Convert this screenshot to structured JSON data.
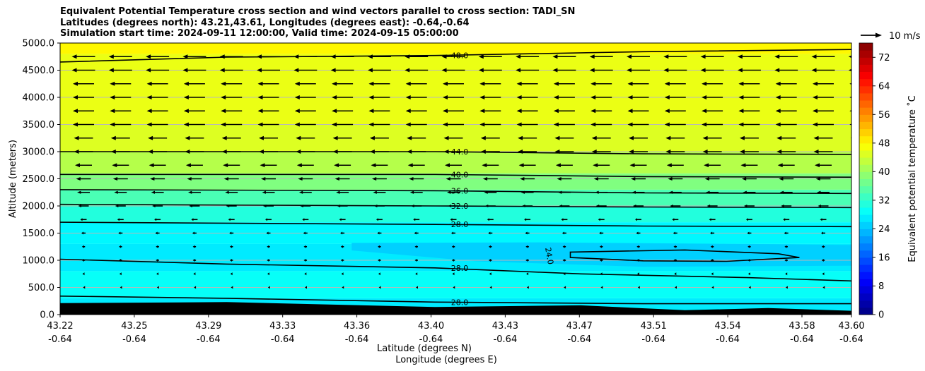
{
  "title": {
    "line1": "Equivalent Potential Temperature cross section and wind vectors parallel to cross section: TADI_SN",
    "line2": "Latitudes (degrees north): 43.21,43.61, Longitudes (degrees east): -0.64,-0.64",
    "line3": "Simulation start time: 2024-09-11 12:00:00, Valid time: 2024-09-15 05:00:00"
  },
  "chart_data": {
    "type": "heatmap",
    "description_of_overlay": "filled contours with labeled contour lines and wind vector arrows",
    "xlabel_line1": "Latitude (degrees N)",
    "xlabel_line2": "Longitude (degrees E)",
    "ylabel": "Altitude (meters)",
    "ylim": [
      0,
      5000
    ],
    "xlim": [
      43.22,
      43.6
    ],
    "x_ticks": [
      {
        "lat": "43.22",
        "lon": "-0.64"
      },
      {
        "lat": "43.25",
        "lon": "-0.64"
      },
      {
        "lat": "43.29",
        "lon": "-0.64"
      },
      {
        "lat": "43.33",
        "lon": "-0.64"
      },
      {
        "lat": "43.36",
        "lon": "-0.64"
      },
      {
        "lat": "43.40",
        "lon": "-0.64"
      },
      {
        "lat": "43.43",
        "lon": "-0.64"
      },
      {
        "lat": "43.47",
        "lon": "-0.64"
      },
      {
        "lat": "43.51",
        "lon": "-0.64"
      },
      {
        "lat": "43.54",
        "lon": "-0.64"
      },
      {
        "lat": "43.58",
        "lon": "-0.64"
      },
      {
        "lat": "43.60",
        "lon": "-0.64"
      }
    ],
    "y_ticks": [
      "0.0",
      "500.0",
      "1000.0",
      "1500.0",
      "2000.0",
      "2500.0",
      "3000.0",
      "3500.0",
      "4000.0",
      "4500.0",
      "5000.0"
    ],
    "y_tick_values": [
      0,
      500,
      1000,
      1500,
      2000,
      2500,
      3000,
      3500,
      4000,
      4500,
      5000
    ],
    "colorbar": {
      "label": "Equivalent potential temperature ˚C",
      "min": 0,
      "max": 76,
      "ticks": [
        "0",
        "8",
        "16",
        "24",
        "32",
        "40",
        "48",
        "56",
        "64",
        "72"
      ],
      "tick_values": [
        0,
        8,
        16,
        24,
        32,
        40,
        48,
        56,
        64,
        72
      ],
      "colormap": "jet"
    },
    "filled_bands": [
      {
        "altitude_from": 0,
        "altitude_to": 300,
        "value": 27
      },
      {
        "altitude_from": 300,
        "altitude_to": 800,
        "value": 29
      },
      {
        "altitude_from": 800,
        "altitude_to": 1300,
        "value": 27
      },
      {
        "altitude_from": 1300,
        "altitude_to": 1700,
        "value": 28
      },
      {
        "altitude_from": 1700,
        "altitude_to": 2000,
        "value": 31
      },
      {
        "altitude_from": 2000,
        "altitude_to": 2300,
        "value": 34
      },
      {
        "altitude_from": 2300,
        "altitude_to": 2600,
        "value": 38
      },
      {
        "altitude_from": 2600,
        "altitude_to": 3000,
        "value": 42
      },
      {
        "altitude_from": 3000,
        "altitude_to": 3500,
        "value": 45
      },
      {
        "altitude_from": 3500,
        "altitude_to": 4800,
        "value": 46
      },
      {
        "altitude_from": 4800,
        "altitude_to": 5000,
        "value": 48
      }
    ],
    "contour_lines": [
      {
        "label": "48.0",
        "points": [
          [
            43.22,
            4650
          ],
          [
            43.3,
            4740
          ],
          [
            43.4,
            4770
          ],
          [
            43.5,
            4840
          ],
          [
            43.6,
            4880
          ]
        ]
      },
      {
        "label": "44.0",
        "points": [
          [
            43.22,
            3000
          ],
          [
            43.4,
            3000
          ],
          [
            43.5,
            2960
          ],
          [
            43.6,
            2950
          ]
        ]
      },
      {
        "label": "40.0",
        "points": [
          [
            43.22,
            2580
          ],
          [
            43.4,
            2580
          ],
          [
            43.5,
            2540
          ],
          [
            43.6,
            2530
          ]
        ]
      },
      {
        "label": "36.0",
        "points": [
          [
            43.22,
            2300
          ],
          [
            43.4,
            2280
          ],
          [
            43.5,
            2240
          ],
          [
            43.6,
            2230
          ]
        ]
      },
      {
        "label": "32.0",
        "points": [
          [
            43.22,
            2030
          ],
          [
            43.4,
            2000
          ],
          [
            43.5,
            1980
          ],
          [
            43.6,
            1970
          ]
        ]
      },
      {
        "label": "28.0",
        "points": [
          [
            43.22,
            1700
          ],
          [
            43.4,
            1660
          ],
          [
            43.5,
            1630
          ],
          [
            43.6,
            1620
          ]
        ]
      },
      {
        "label": "28.0",
        "points": [
          [
            43.22,
            1020
          ],
          [
            43.3,
            930
          ],
          [
            43.4,
            860
          ],
          [
            43.47,
            750
          ],
          [
            43.55,
            680
          ],
          [
            43.6,
            620
          ]
        ]
      },
      {
        "label": "28.0",
        "points": [
          [
            43.22,
            340
          ],
          [
            43.3,
            300
          ],
          [
            43.4,
            230
          ],
          [
            43.5,
            200
          ],
          [
            43.6,
            200
          ]
        ]
      },
      {
        "label": "24.0",
        "points": [
          [
            43.465,
            1150
          ],
          [
            43.52,
            1190
          ],
          [
            43.565,
            1120
          ],
          [
            43.575,
            1050
          ],
          [
            43.54,
            980
          ],
          [
            43.5,
            990
          ],
          [
            43.465,
            1050
          ]
        ]
      }
    ],
    "terrain": [
      [
        43.22,
        210
      ],
      [
        43.3,
        230
      ],
      [
        43.4,
        140
      ],
      [
        43.47,
        170
      ],
      [
        43.52,
        80
      ],
      [
        43.56,
        120
      ],
      [
        43.6,
        70
      ]
    ],
    "wind_reference": {
      "label": "10 m/s",
      "speed": 10
    },
    "wind_vectors_by_level": [
      {
        "altitude": 4750,
        "speed": 11
      },
      {
        "altitude": 4500,
        "speed": 11
      },
      {
        "altitude": 4250,
        "speed": 10
      },
      {
        "altitude": 4000,
        "speed": 10
      },
      {
        "altitude": 3750,
        "speed": 10
      },
      {
        "altitude": 3500,
        "speed": 10
      },
      {
        "altitude": 3250,
        "speed": 9
      },
      {
        "altitude": 3000,
        "speed": 9
      },
      {
        "altitude": 2750,
        "speed": 8
      },
      {
        "altitude": 2500,
        "speed": 7
      },
      {
        "altitude": 2250,
        "speed": 6
      },
      {
        "altitude": 2000,
        "speed": 5
      },
      {
        "altitude": 1750,
        "speed": 3
      },
      {
        "altitude": 1500,
        "speed": 2
      },
      {
        "altitude": 1250,
        "speed": 1.5
      },
      {
        "altitude": 1000,
        "speed": 1.5
      },
      {
        "altitude": 750,
        "speed": 1
      },
      {
        "altitude": 500,
        "speed": 0.5
      }
    ]
  }
}
